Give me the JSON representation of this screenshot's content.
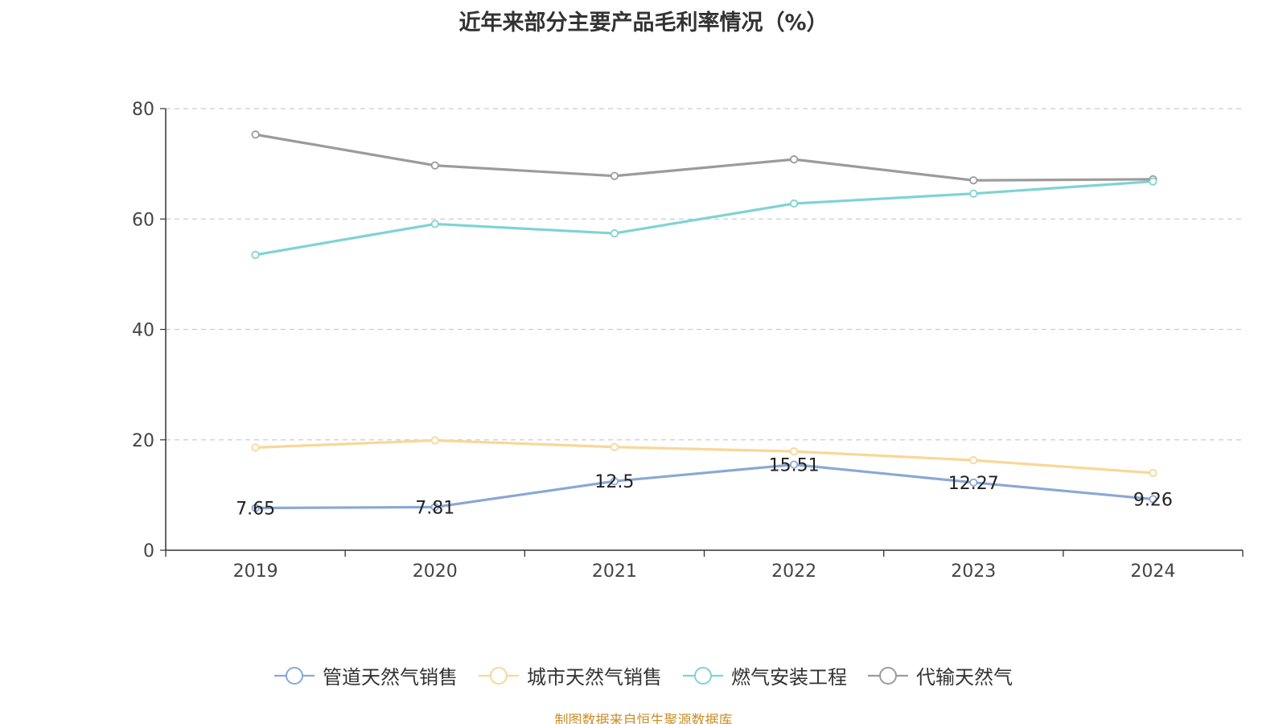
{
  "chart_data": {
    "type": "line",
    "title": "近年来部分主要产品毛利率情况（%）",
    "xlabel": "",
    "ylabel": "",
    "categories": [
      "2019",
      "2020",
      "2021",
      "2022",
      "2023",
      "2024"
    ],
    "ylim": [
      0,
      80
    ],
    "yticks": [
      "0",
      "20",
      "40",
      "60",
      "80"
    ],
    "grid": true,
    "legend_position": "bottom",
    "series": [
      {
        "name": "管道天然气销售",
        "color": "#8aa7d6",
        "values": [
          7.65,
          7.81,
          12.5,
          15.51,
          12.27,
          9.26
        ],
        "labels": [
          "7.65",
          "7.81",
          "12.5",
          "15.51",
          "12.27",
          "9.26"
        ]
      },
      {
        "name": "城市天然气销售",
        "color": "#f8d796",
        "values": [
          18.6,
          19.9,
          18.7,
          17.9,
          16.3,
          14.0
        ]
      },
      {
        "name": "燃气安装工程",
        "color": "#7fd3d3",
        "values": [
          53.5,
          59.1,
          57.4,
          62.8,
          64.6,
          66.8
        ]
      },
      {
        "name": "代输天然气",
        "color": "#9b9b9b",
        "values": [
          75.3,
          69.7,
          67.8,
          70.8,
          67.0,
          67.2
        ]
      }
    ]
  },
  "source": "制图数据来自恒生聚源数据库"
}
